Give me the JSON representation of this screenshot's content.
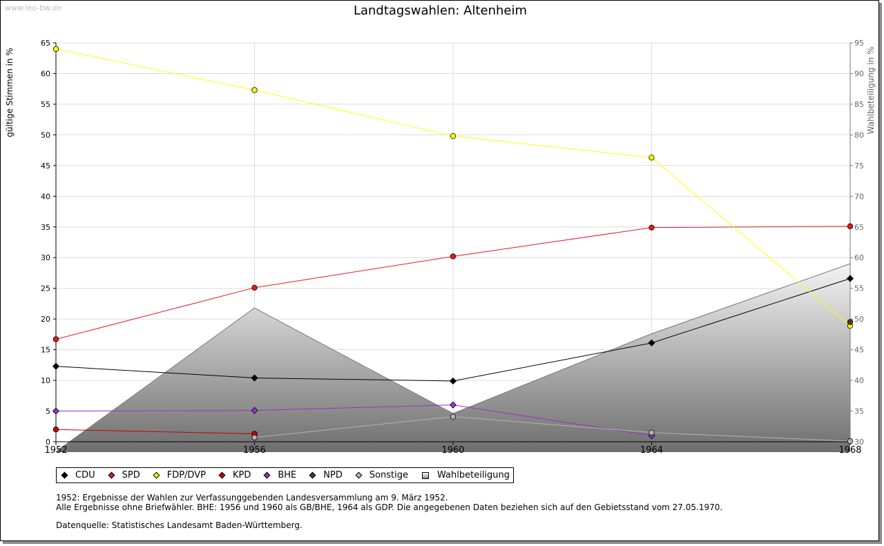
{
  "watermark": "www.leo-bw.de",
  "chart_data": {
    "type": "line",
    "title": "Landtagswahlen: Altenheim",
    "ylabel_left": "gültige Stimmen in %",
    "ylabel_right": "Wahlbeteiligung in %",
    "x": [
      1952,
      1956,
      1960,
      1964,
      1968
    ],
    "ylim_left": [
      0,
      65
    ],
    "ylim_right": [
      30,
      95
    ],
    "yticks_left": [
      0,
      5,
      10,
      15,
      20,
      25,
      30,
      35,
      40,
      45,
      50,
      55,
      60,
      65
    ],
    "yticks_right": [
      30,
      35,
      40,
      45,
      50,
      55,
      60,
      65,
      70,
      75,
      80,
      85,
      90,
      95
    ],
    "grid": true,
    "series": [
      {
        "name": "CDU",
        "color": "#000000",
        "marker": "diamond",
        "axis": "left",
        "values": [
          12.3,
          10.4,
          9.9,
          16.1,
          26.6
        ]
      },
      {
        "name": "SPD",
        "color": "#e41a1c",
        "marker": "circle",
        "axis": "left",
        "values": [
          16.7,
          25.1,
          30.2,
          34.9,
          35.1
        ]
      },
      {
        "name": "FDP/DVP",
        "color": "#ffff00",
        "marker": "circle",
        "axis": "left",
        "values": [
          64.0,
          57.3,
          49.8,
          46.3,
          18.9
        ]
      },
      {
        "name": "KPD",
        "color": "#c00000",
        "marker": "circle",
        "axis": "left",
        "values": [
          2.0,
          1.3,
          null,
          null,
          null
        ]
      },
      {
        "name": "BHE",
        "color": "#9b30c8",
        "marker": "diamond",
        "axis": "left",
        "values": [
          5.0,
          5.1,
          6.0,
          1.0,
          null
        ]
      },
      {
        "name": "NPD",
        "color": "#5a3a1a",
        "marker": "circle",
        "axis": "left",
        "values": [
          null,
          null,
          null,
          null,
          19.5
        ]
      },
      {
        "name": "Sonstige",
        "color": "#b4b4b4",
        "marker": "circle",
        "axis": "left",
        "values": [
          null,
          0.7,
          4.1,
          1.5,
          0.1
        ]
      },
      {
        "name": "Wahlbeteiligung",
        "color": "#909090",
        "marker": "area",
        "axis": "right",
        "values": [
          28.4,
          51.8,
          34.6,
          47.6,
          59.0
        ]
      }
    ]
  },
  "legend": [
    "CDU",
    "SPD",
    "FDP/DVP",
    "KPD",
    "BHE",
    "NPD",
    "Sonstige",
    "Wahlbeteiligung"
  ],
  "notes": {
    "line1": "1952: Ergebnisse der Wahlen zur Verfassunggebenden Landesversammlung am 9. März 1952.",
    "line2": "Alle Ergebnisse ohne Briefwähler. BHE: 1956 und 1960 als GB/BHE, 1964 als GDP. Die angegebenen Daten beziehen sich auf den Gebietsstand vom 27.05.1970.",
    "line3": "Datenquelle: Statistisches Landesamt Baden-Württemberg."
  }
}
